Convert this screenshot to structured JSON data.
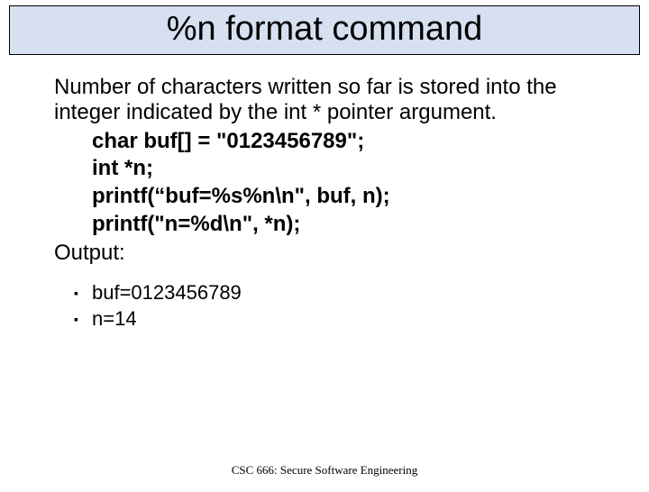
{
  "title": "%n format command",
  "title_bg": "#d6e0f0",
  "title_border": "#000000",
  "paragraph": "Number of characters written so far is stored into the integer indicated by the int * pointer argument.",
  "code_lines": [
    "char buf[] = \"0123456789\";",
    "int *n;",
    "printf(“buf=%s%n\\n\", buf, n);",
    "printf(\"n=%d\\n\", *n);"
  ],
  "output_label": "Output:",
  "bullets": [
    "buf=0123456789",
    "n=14"
  ],
  "bullet_marker": "▪",
  "footer": "CSC 666: Secure Software Engineering",
  "fontsize_title": 38,
  "fontsize_body": 24,
  "fontsize_bullet": 22,
  "fontsize_footer": 13,
  "text_color": "#000000",
  "background_color": "#ffffff"
}
